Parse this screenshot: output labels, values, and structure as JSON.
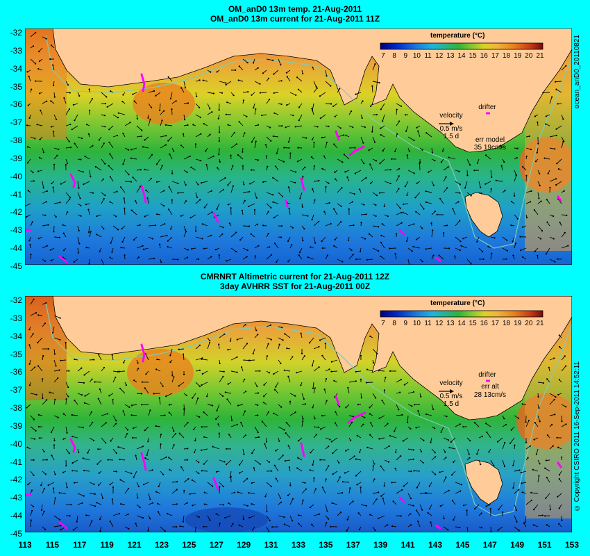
{
  "top": {
    "title1": "OM_anD0 13m temp. 21-Aug-2011",
    "title2": "OM_anD0 13m current for 21-Aug-2011 11Z",
    "side_label": "ocean_anD0_20110821",
    "velocity_label": "velocity",
    "velocity_value": "0.5 m/s",
    "velocity_days": "1.5 d",
    "drifter_label": "drifter",
    "err_label": "err model",
    "err_value": "35 19cm/s"
  },
  "bottom": {
    "title1": "CMRNRT Altimetric current for 21-Aug-2011 12Z",
    "title2": "3day AVHRR SST for 21-Aug-2011 00Z",
    "side_label": "© Copyright CSIRO 2011   16-Sep-2011 14:52:11",
    "velocity_label": "velocity",
    "velocity_value": "0.5 m/s",
    "velocity_days": "1.5 d",
    "drifter_label": "drifter",
    "err_label": "err alt",
    "err_value": "28 13cm/s"
  },
  "legend": {
    "title": "temperature (°C)",
    "ticks": [
      "7",
      "8",
      "9",
      "10",
      "11",
      "12",
      "13",
      "14",
      "15",
      "16",
      "17",
      "18",
      "19",
      "20",
      "21"
    ]
  },
  "axes": {
    "y_labels": [
      "-32",
      "-33",
      "-34",
      "-35",
      "-36",
      "-37",
      "-38",
      "-39",
      "-40",
      "-41",
      "-42",
      "-43",
      "-44",
      "-45"
    ],
    "x_labels": [
      "113",
      "115",
      "117",
      "119",
      "121",
      "123",
      "125",
      "127",
      "129",
      "131",
      "133",
      "135",
      "137",
      "139",
      "141",
      "143",
      "145",
      "147",
      "149",
      "151",
      "153"
    ],
    "lon_range": [
      113,
      153
    ],
    "lat_range": [
      -45,
      -31.6
    ]
  },
  "colors": {
    "background": "#00ffff",
    "land": "#ffcc99",
    "warm": "#e87d1e",
    "mid": "#dcd226",
    "cool": "#32b432",
    "cold": "#1e78dc",
    "drifter": "#ff00ff",
    "contour": "#7ecdb8"
  }
}
